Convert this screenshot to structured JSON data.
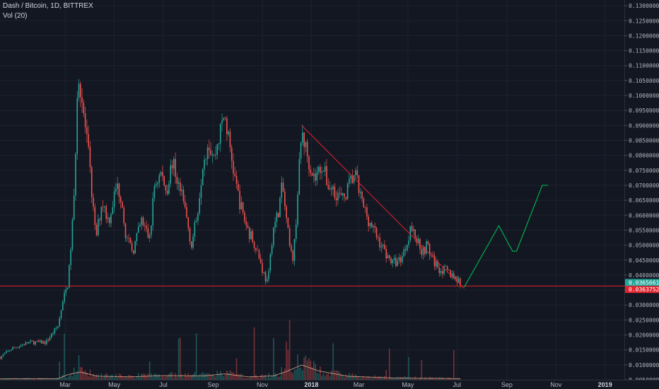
{
  "header": {
    "symbol_line": "Dash / Bitcoin, 1D, BITTREX",
    "volume_line": "Vol (20)"
  },
  "colors": {
    "background": "#131722",
    "up": "#26a69a",
    "down": "#ef5350",
    "trendline": "#e0242f",
    "projection": "#00c853",
    "support": "#e0242f",
    "grid": "#1e2230",
    "volume_ma": "#d8a085"
  },
  "chart_data": {
    "type": "candlestick",
    "title": "Dash / Bitcoin, 1D, BITTREX",
    "ylim": [
      0.0045,
      0.131
    ],
    "y_ticks": [
      "0.13000000",
      "0.12500000",
      "0.12000000",
      "0.11500000",
      "0.11000000",
      "0.10500000",
      "0.10000000",
      "0.09500000",
      "0.09000000",
      "0.08500000",
      "0.08000000",
      "0.07500000",
      "0.07000000",
      "0.06500000",
      "0.06000000",
      "0.05500000",
      "0.05000000",
      "0.04500000",
      "0.04000000",
      "0.03500000",
      "0.03000000",
      "0.02500000",
      "0.02000000",
      "0.01500000",
      "0.01000000",
      "0.00500000"
    ],
    "x_ticks": [
      "Mar",
      "May",
      "Jul",
      "Sep",
      "Nov",
      "2018",
      "Mar",
      "May",
      "Jul",
      "Sep",
      "Nov",
      "2019"
    ],
    "x_tick_positions": [
      "2017-03-01",
      "2017-05-01",
      "2017-07-01",
      "2017-09-01",
      "2017-11-01",
      "2018-01-01",
      "2018-03-01",
      "2018-05-01",
      "2018-07-01",
      "2018-09-01",
      "2018-11-01",
      "2019-01-01"
    ],
    "x_range": [
      "2016-12-10",
      "2019-01-25"
    ],
    "price_keypoints": [
      [
        "2016-12-10",
        0.0125
      ],
      [
        "2016-12-25",
        0.0155
      ],
      [
        "2017-01-15",
        0.0175
      ],
      [
        "2017-02-05",
        0.0175
      ],
      [
        "2017-02-20",
        0.023
      ],
      [
        "2017-02-27",
        0.032
      ],
      [
        "2017-03-05",
        0.038
      ],
      [
        "2017-03-12",
        0.065
      ],
      [
        "2017-03-17",
        0.11
      ],
      [
        "2017-03-22",
        0.098
      ],
      [
        "2017-03-30",
        0.08
      ],
      [
        "2017-04-08",
        0.052
      ],
      [
        "2017-04-16",
        0.065
      ],
      [
        "2017-04-24",
        0.058
      ],
      [
        "2017-05-04",
        0.07
      ],
      [
        "2017-05-10",
        0.066
      ],
      [
        "2017-05-16",
        0.052
      ],
      [
        "2017-05-24",
        0.048
      ],
      [
        "2017-06-04",
        0.058
      ],
      [
        "2017-06-14",
        0.052
      ],
      [
        "2017-06-20",
        0.07
      ],
      [
        "2017-06-28",
        0.074
      ],
      [
        "2017-07-05",
        0.068
      ],
      [
        "2017-07-12",
        0.078
      ],
      [
        "2017-07-20",
        0.07
      ],
      [
        "2017-07-28",
        0.062
      ],
      [
        "2017-08-05",
        0.05
      ],
      [
        "2017-08-12",
        0.06
      ],
      [
        "2017-08-19",
        0.078
      ],
      [
        "2017-08-26",
        0.085
      ],
      [
        "2017-09-02",
        0.079
      ],
      [
        "2017-09-08",
        0.086
      ],
      [
        "2017-09-15",
        0.094
      ],
      [
        "2017-09-22",
        0.082
      ],
      [
        "2017-09-30",
        0.069
      ],
      [
        "2017-10-08",
        0.06
      ],
      [
        "2017-10-16",
        0.054
      ],
      [
        "2017-10-24",
        0.05
      ],
      [
        "2017-11-02",
        0.041
      ],
      [
        "2017-11-08",
        0.037
      ],
      [
        "2017-11-14",
        0.055
      ],
      [
        "2017-11-20",
        0.06
      ],
      [
        "2017-11-26",
        0.07
      ],
      [
        "2017-12-01",
        0.058
      ],
      [
        "2017-12-06",
        0.047
      ],
      [
        "2017-12-10",
        0.046
      ],
      [
        "2017-12-16",
        0.072
      ],
      [
        "2017-12-20",
        0.088
      ],
      [
        "2017-12-27",
        0.08
      ],
      [
        "2018-01-05",
        0.072
      ],
      [
        "2018-01-14",
        0.077
      ],
      [
        "2018-01-22",
        0.07
      ],
      [
        "2018-01-31",
        0.068
      ],
      [
        "2018-02-09",
        0.065
      ],
      [
        "2018-02-17",
        0.07
      ],
      [
        "2018-02-24",
        0.074
      ],
      [
        "2018-03-05",
        0.064
      ],
      [
        "2018-03-14",
        0.058
      ],
      [
        "2018-03-23",
        0.053
      ],
      [
        "2018-04-02",
        0.048
      ],
      [
        "2018-04-12",
        0.044
      ],
      [
        "2018-04-21",
        0.045
      ],
      [
        "2018-04-29",
        0.05
      ],
      [
        "2018-05-04",
        0.056
      ],
      [
        "2018-05-12",
        0.052
      ],
      [
        "2018-05-19",
        0.048
      ],
      [
        "2018-05-25",
        0.05
      ],
      [
        "2018-06-01",
        0.045
      ],
      [
        "2018-06-10",
        0.042
      ],
      [
        "2018-06-20",
        0.041
      ],
      [
        "2018-06-30",
        0.039
      ],
      [
        "2018-07-05",
        0.0375
      ]
    ],
    "volume_keypoints": [
      [
        "2016-12-10",
        0.3
      ],
      [
        "2017-02-20",
        0.4
      ],
      [
        "2017-03-05",
        1.8
      ],
      [
        "2017-03-20",
        2.6
      ],
      [
        "2017-04-10",
        1.2
      ],
      [
        "2017-05-20",
        1.0
      ],
      [
        "2017-07-01",
        1.4
      ],
      [
        "2017-08-20",
        1.3
      ],
      [
        "2017-09-15",
        2.0
      ],
      [
        "2017-10-15",
        1.0
      ],
      [
        "2017-11-15",
        1.3
      ],
      [
        "2017-12-01",
        2.8
      ],
      [
        "2017-12-20",
        5.0
      ],
      [
        "2018-01-10",
        3.0
      ],
      [
        "2018-02-15",
        1.2
      ],
      [
        "2018-04-15",
        0.6
      ],
      [
        "2018-07-05",
        0.4
      ]
    ],
    "trendline": [
      [
        "2017-12-20",
        0.09
      ],
      [
        "2018-07-10",
        0.0355
      ]
    ],
    "projection": [
      [
        "2018-07-10",
        0.036
      ],
      [
        "2018-08-22",
        0.0565
      ],
      [
        "2018-09-08",
        0.048
      ],
      [
        "2018-09-13",
        0.048
      ],
      [
        "2018-10-15",
        0.07
      ],
      [
        "2018-10-22",
        0.07
      ]
    ],
    "support_level": 0.03635,
    "last_price": {
      "label": "0.03656617",
      "value": 0.03656617
    },
    "ref_price": {
      "label": "0.03637524",
      "value": 0.03637524
    }
  }
}
